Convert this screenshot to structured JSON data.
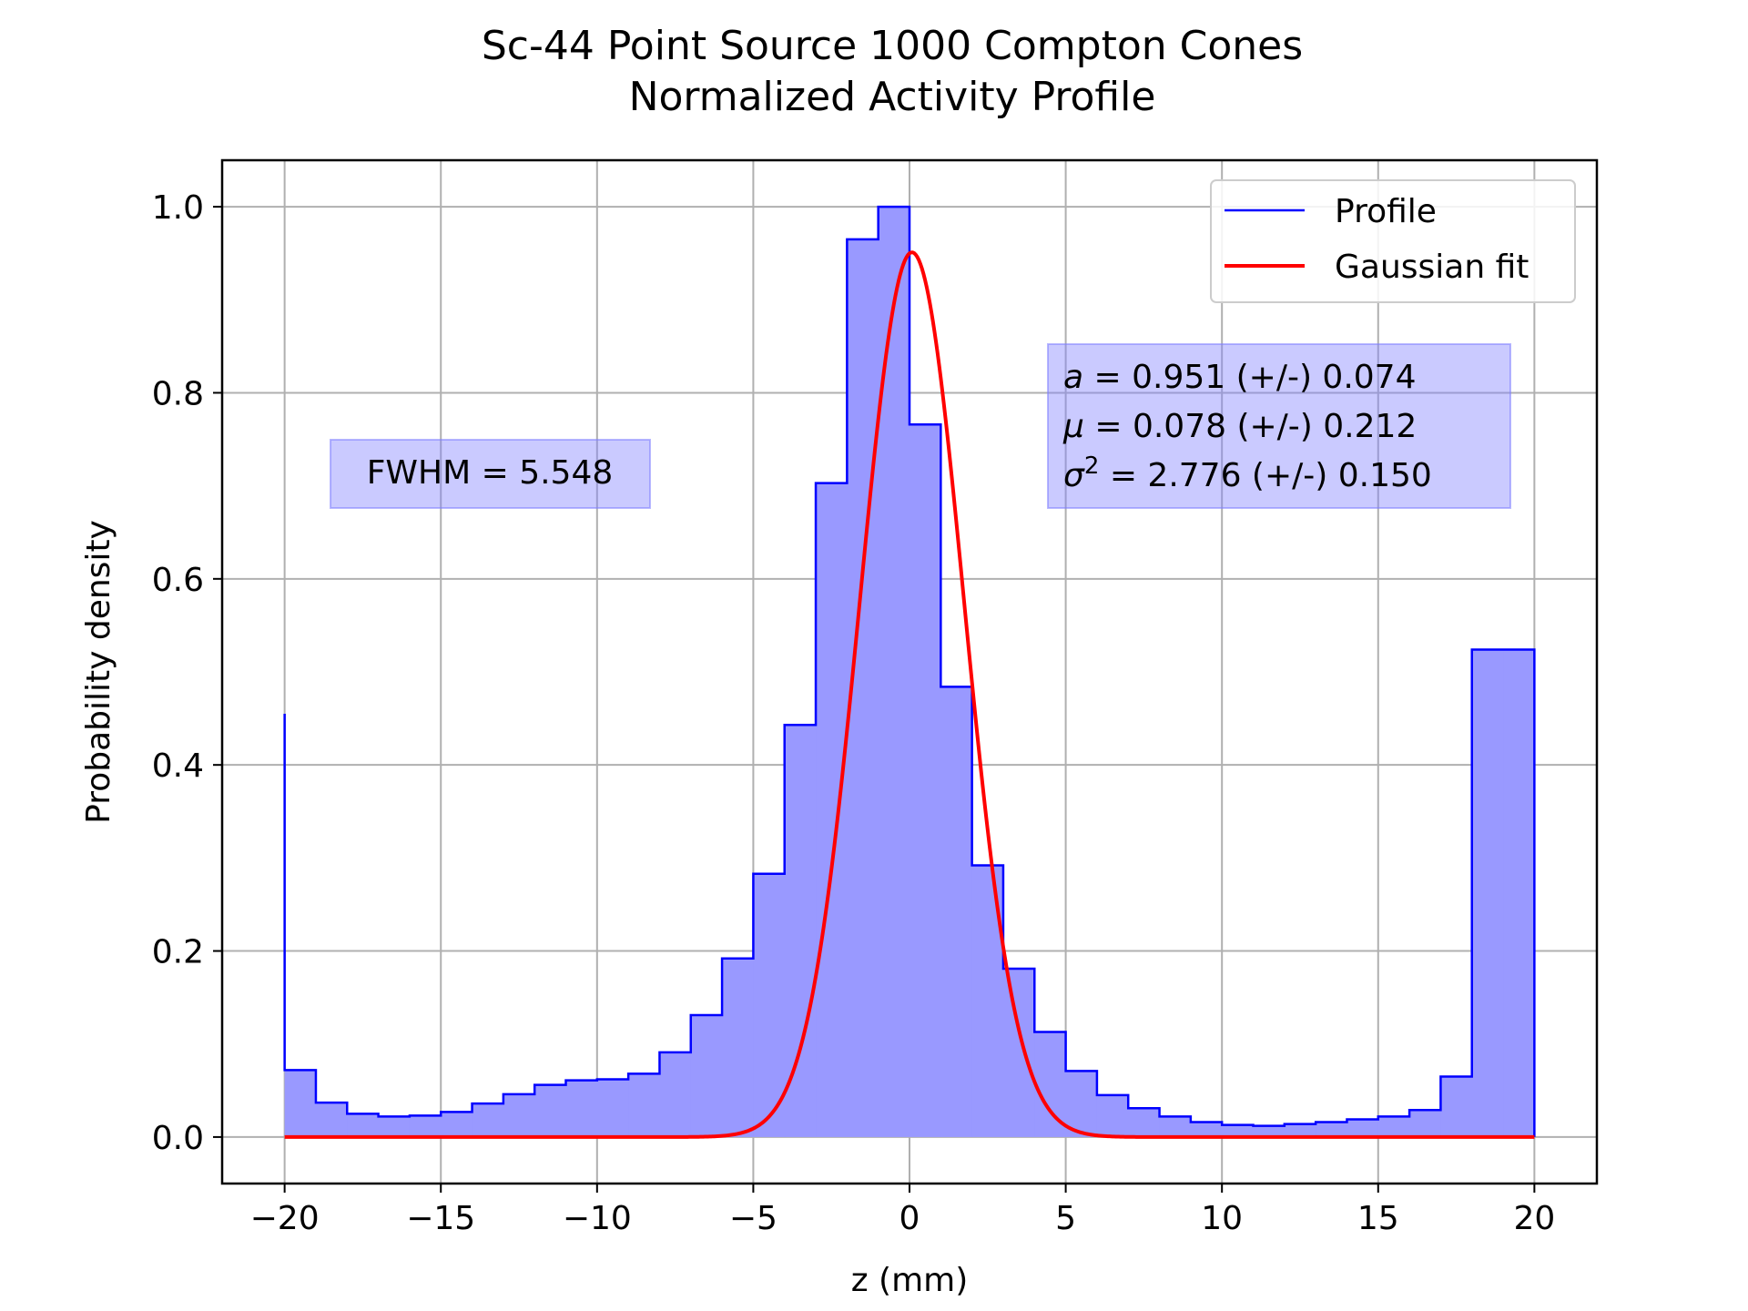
{
  "chart_data": {
    "type": "histogram",
    "title_line1": "Sc-44 Point Source 1000 Compton Cones",
    "title_line2": "Normalized Activity Profile",
    "xlabel": "z (mm)",
    "ylabel": "Probability density",
    "xlim": [
      -22,
      22
    ],
    "ylim": [
      -0.05,
      1.05
    ],
    "xticks": [
      -20,
      -15,
      -10,
      -5,
      0,
      5,
      10,
      15,
      20
    ],
    "xtick_labels": [
      "−20",
      "−15",
      "−10",
      "−5",
      "0",
      "5",
      "10",
      "15",
      "20"
    ],
    "yticks": [
      0.0,
      0.2,
      0.4,
      0.6,
      0.8,
      1.0
    ],
    "ytick_labels": [
      "0.0",
      "0.2",
      "0.4",
      "0.6",
      "0.8",
      "1.0"
    ],
    "grid": true,
    "legend_position": "top-right",
    "histogram": {
      "name": "Profile",
      "color": "#0000ff",
      "fill_color": "#9999ff",
      "bin_edges": [
        -20,
        -19,
        -18,
        -17,
        -16,
        -15,
        -14,
        -13,
        -12,
        -11,
        -10,
        -9,
        -8,
        -7,
        -6,
        -5,
        -4,
        -3,
        -2,
        -1,
        0,
        1,
        2,
        3,
        4,
        5,
        6,
        7,
        8,
        9,
        10,
        11,
        12,
        13,
        14,
        15,
        16,
        17,
        18,
        19,
        20
      ],
      "values": [
        0.072,
        0.037,
        0.025,
        0.022,
        0.023,
        0.027,
        0.036,
        0.046,
        0.056,
        0.061,
        0.062,
        0.068,
        0.091,
        0.131,
        0.192,
        0.283,
        0.443,
        0.703,
        0.965,
        1.0,
        0.766,
        0.484,
        0.292,
        0.181,
        0.113,
        0.071,
        0.045,
        0.031,
        0.022,
        0.016,
        0.013,
        0.012,
        0.014,
        0.016,
        0.019,
        0.022,
        0.029,
        0.065,
        0.524,
        0.524
      ],
      "left_edge_spike": 0.455
    },
    "fit": {
      "name": "Gaussian fit",
      "color": "#ff0000",
      "a": 0.951,
      "mu": 0.078,
      "sigma2": 2.776,
      "x_range": [
        -20,
        20
      ]
    },
    "annotations": {
      "fwhm": "FWHM = 5.548",
      "params": [
        {
          "sym": "a",
          "sup": "",
          "rest": " = 0.951 (+/-) 0.074"
        },
        {
          "sym": "μ",
          "sup": "",
          "rest": " = 0.078 (+/-) 0.212"
        },
        {
          "sym": "σ",
          "sup": "2",
          "rest": " = 2.776 (+/-) 0.150"
        }
      ],
      "box_color": "#8080ff"
    }
  }
}
